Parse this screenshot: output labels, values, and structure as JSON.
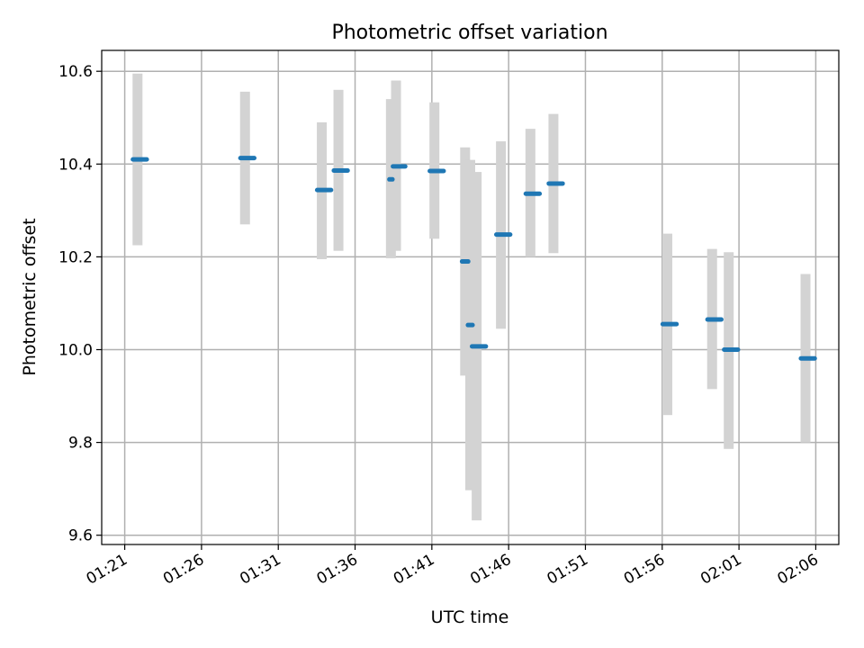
{
  "chart_data": {
    "type": "scatter",
    "title": "Photometric offset variation",
    "xlabel": "UTC time",
    "ylabel": "Photometric offset",
    "x_ticks": [
      "01:21",
      "01:26",
      "01:31",
      "01:36",
      "01:41",
      "01:46",
      "01:51",
      "01:56",
      "02:01",
      "02:06"
    ],
    "y_ticks": [
      9.6,
      9.8,
      10.0,
      10.2,
      10.4,
      10.6
    ],
    "xlim": [
      "01:19:30",
      "02:07:30"
    ],
    "ylim": [
      9.58,
      10.645
    ],
    "grid": true,
    "colors": {
      "point": "#1f77b4",
      "errorbar": "#d3d3d3",
      "grid": "#b0b0b0"
    },
    "points": [
      {
        "x": "01:21:50",
        "y": 10.41,
        "y_low": 10.225,
        "y_high": 10.595,
        "x_span": [
          0.3,
          0.6
        ]
      },
      {
        "x": "01:28:50",
        "y": 10.413,
        "y_low": 10.27,
        "y_high": 10.556,
        "x_span": [
          0.3,
          0.6
        ]
      },
      {
        "x": "01:33:50",
        "y": 10.344,
        "y_low": 10.195,
        "y_high": 10.49,
        "x_span": [
          0.3,
          0.6
        ]
      },
      {
        "x": "01:34:55",
        "y": 10.386,
        "y_low": 10.213,
        "y_high": 10.56,
        "x_span": [
          0.3,
          0.6
        ]
      },
      {
        "x": "01:38:20",
        "y": 10.367,
        "y_low": 10.197,
        "y_high": 10.54,
        "x_span": [
          0.1,
          0.1
        ]
      },
      {
        "x": "01:38:40",
        "y": 10.395,
        "y_low": 10.213,
        "y_high": 10.58,
        "x_span": [
          0.2,
          0.6
        ]
      },
      {
        "x": "01:41:10",
        "y": 10.385,
        "y_low": 10.239,
        "y_high": 10.533,
        "x_span": [
          0.3,
          0.6
        ]
      },
      {
        "x": "01:43:10",
        "y": 10.19,
        "y_low": 9.944,
        "y_high": 10.436,
        "x_span": [
          0.2,
          0.2
        ]
      },
      {
        "x": "01:43:30",
        "y": 10.053,
        "y_low": 9.697,
        "y_high": 10.409,
        "x_span": [
          0.15,
          0.15
        ]
      },
      {
        "x": "01:43:55",
        "y": 10.007,
        "y_low": 9.632,
        "y_high": 10.383,
        "x_span": [
          0.3,
          0.6
        ]
      },
      {
        "x": "01:45:30",
        "y": 10.248,
        "y_low": 10.045,
        "y_high": 10.449,
        "x_span": [
          0.3,
          0.6
        ]
      },
      {
        "x": "01:47:25",
        "y": 10.336,
        "y_low": 10.2,
        "y_high": 10.476,
        "x_span": [
          0.3,
          0.6
        ]
      },
      {
        "x": "01:48:55",
        "y": 10.358,
        "y_low": 10.208,
        "y_high": 10.508,
        "x_span": [
          0.3,
          0.6
        ]
      },
      {
        "x": "01:56:20",
        "y": 10.055,
        "y_low": 9.859,
        "y_high": 10.25,
        "x_span": [
          0.3,
          0.6
        ]
      },
      {
        "x": "01:59:15",
        "y": 10.065,
        "y_low": 9.915,
        "y_high": 10.217,
        "x_span": [
          0.3,
          0.6
        ]
      },
      {
        "x": "02:00:20",
        "y": 10.0,
        "y_low": 9.786,
        "y_high": 10.21,
        "x_span": [
          0.3,
          0.6
        ]
      },
      {
        "x": "02:05:20",
        "y": 9.981,
        "y_low": 9.8,
        "y_high": 10.163,
        "x_span": [
          0.3,
          0.6
        ]
      }
    ]
  }
}
